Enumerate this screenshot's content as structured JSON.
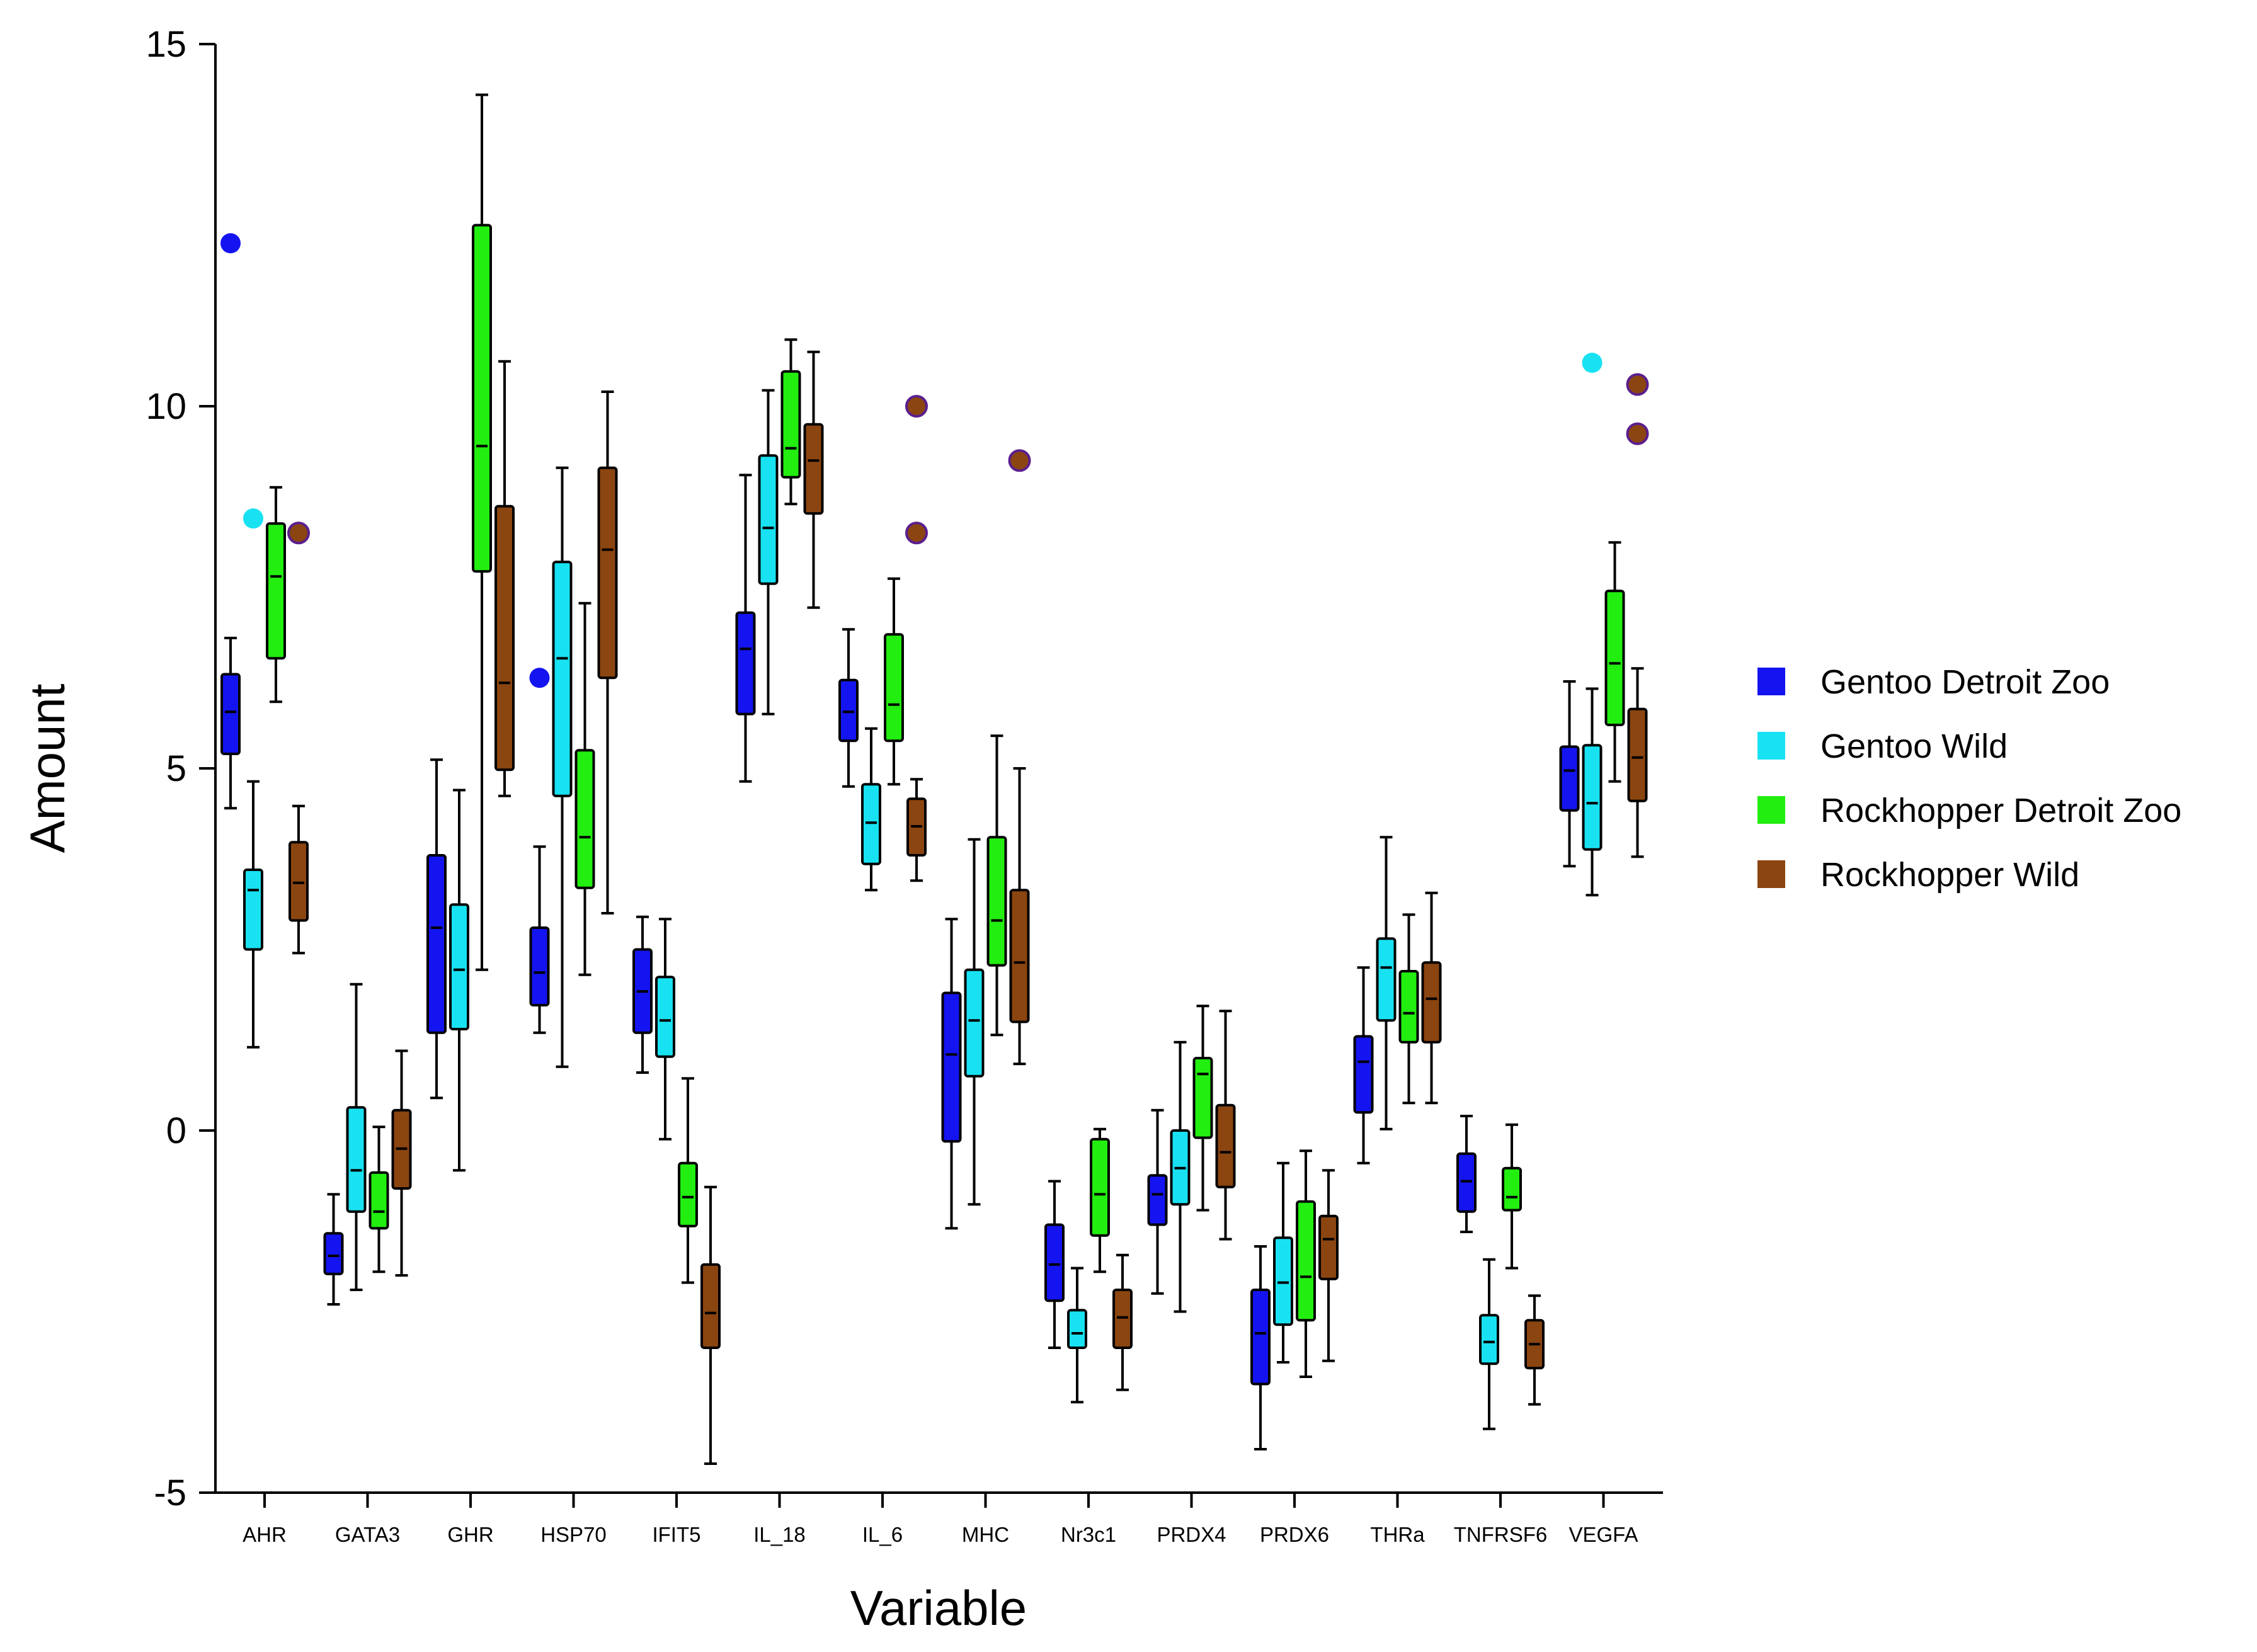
{
  "chart_data": {
    "type": "boxplot",
    "title": "",
    "xlabel": "Variable",
    "ylabel": "Amount",
    "ylim": [
      -5,
      15
    ],
    "yticks": [
      15,
      10,
      5,
      0,
      -5
    ],
    "ytick_labels": [
      "15",
      "10",
      "5",
      "0",
      "-5"
    ],
    "legend_position": "right",
    "categories": [
      "AHR",
      "GATA3",
      "GHR",
      "HSP70",
      "IFIT5",
      "IL_18",
      "IL_6",
      "MHC",
      "Nr3c1",
      "PRDX4",
      "PRDX6",
      "THRa",
      "TNFRSF6",
      "VEGFA"
    ],
    "series": [
      {
        "name": "Gentoo Detroit Zoo",
        "color": "#1414f0",
        "boxes": [
          {
            "min": 4.45,
            "q1": 5.2,
            "median": 5.78,
            "q3": 6.3,
            "max": 6.8,
            "outliers": [
              12.25
            ]
          },
          {
            "min": -2.4,
            "q1": -1.98,
            "median": -1.73,
            "q3": -1.42,
            "max": -0.88,
            "outliers": []
          },
          {
            "min": 0.45,
            "q1": 1.35,
            "median": 2.8,
            "q3": 3.8,
            "max": 5.12,
            "outliers": []
          },
          {
            "min": 1.35,
            "q1": 1.73,
            "median": 2.18,
            "q3": 2.8,
            "max": 3.92,
            "outliers": [
              6.25
            ]
          },
          {
            "min": 0.8,
            "q1": 1.35,
            "median": 1.92,
            "q3": 2.5,
            "max": 2.95,
            "outliers": []
          },
          {
            "min": 4.82,
            "q1": 5.75,
            "median": 6.65,
            "q3": 7.15,
            "max": 9.05,
            "outliers": []
          },
          {
            "min": 4.75,
            "q1": 5.38,
            "median": 5.78,
            "q3": 6.22,
            "max": 6.92,
            "outliers": []
          },
          {
            "min": -1.35,
            "q1": -0.15,
            "median": 1.05,
            "q3": 1.9,
            "max": 2.92,
            "outliers": []
          },
          {
            "min": -3.0,
            "q1": -2.35,
            "median": -1.85,
            "q3": -1.3,
            "max": -0.7,
            "outliers": []
          },
          {
            "min": -2.25,
            "q1": -1.3,
            "median": -0.88,
            "q3": -0.62,
            "max": 0.28,
            "outliers": []
          },
          {
            "min": -4.4,
            "q1": -3.5,
            "median": -2.8,
            "q3": -2.2,
            "max": -1.6,
            "outliers": []
          },
          {
            "min": -0.45,
            "q1": 0.25,
            "median": 0.95,
            "q3": 1.3,
            "max": 2.25,
            "outliers": []
          },
          {
            "min": -1.4,
            "q1": -1.12,
            "median": -0.7,
            "q3": -0.32,
            "max": 0.2,
            "outliers": []
          },
          {
            "min": 3.65,
            "q1": 4.42,
            "median": 4.97,
            "q3": 5.3,
            "max": 6.2,
            "outliers": []
          }
        ]
      },
      {
        "name": "Gentoo Wild",
        "color": "#18e2f2",
        "boxes": [
          {
            "min": 1.15,
            "q1": 2.5,
            "median": 3.32,
            "q3": 3.6,
            "max": 4.82,
            "outliers": [
              8.45
            ]
          },
          {
            "min": -2.2,
            "q1": -1.12,
            "median": -0.55,
            "q3": 0.32,
            "max": 2.02,
            "outliers": []
          },
          {
            "min": -0.55,
            "q1": 1.4,
            "median": 2.22,
            "q3": 3.12,
            "max": 4.7,
            "outliers": []
          },
          {
            "min": 0.88,
            "q1": 4.62,
            "median": 6.52,
            "q3": 7.85,
            "max": 9.15,
            "outliers": []
          },
          {
            "min": -0.12,
            "q1": 1.02,
            "median": 1.52,
            "q3": 2.12,
            "max": 2.92,
            "outliers": []
          },
          {
            "min": 5.75,
            "q1": 7.55,
            "median": 8.32,
            "q3": 9.32,
            "max": 10.22,
            "outliers": []
          },
          {
            "min": 3.32,
            "q1": 3.68,
            "median": 4.25,
            "q3": 4.78,
            "max": 5.55,
            "outliers": []
          },
          {
            "min": -1.02,
            "q1": 0.75,
            "median": 1.52,
            "q3": 2.22,
            "max": 4.02,
            "outliers": []
          },
          {
            "min": -3.75,
            "q1": -3.0,
            "median": -2.8,
            "q3": -2.48,
            "max": -1.9,
            "outliers": []
          },
          {
            "min": -2.5,
            "q1": -1.02,
            "median": -0.52,
            "q3": 0.0,
            "max": 1.22,
            "outliers": []
          },
          {
            "min": -3.2,
            "q1": -2.68,
            "median": -2.1,
            "q3": -1.48,
            "max": -0.45,
            "outliers": []
          },
          {
            "min": 0.02,
            "q1": 1.52,
            "median": 2.25,
            "q3": 2.65,
            "max": 4.05,
            "outliers": []
          },
          {
            "min": -4.12,
            "q1": -3.22,
            "median": -2.92,
            "q3": -2.55,
            "max": -1.78,
            "outliers": []
          },
          {
            "min": 3.25,
            "q1": 3.88,
            "median": 4.52,
            "q3": 5.32,
            "max": 6.1,
            "outliers": [
              10.6
            ]
          }
        ]
      },
      {
        "name": "Rockhopper Detroit Zoo",
        "color": "#22ee10",
        "boxes": [
          {
            "min": 5.92,
            "q1": 6.52,
            "median": 7.65,
            "q3": 8.38,
            "max": 8.88,
            "outliers": []
          },
          {
            "min": -1.95,
            "q1": -1.35,
            "median": -1.12,
            "q3": -0.58,
            "max": 0.05,
            "outliers": []
          },
          {
            "min": 2.22,
            "q1": 7.72,
            "median": 9.45,
            "q3": 12.5,
            "max": 14.3,
            "outliers": []
          },
          {
            "min": 2.15,
            "q1": 3.35,
            "median": 4.05,
            "q3": 5.25,
            "max": 7.28,
            "outliers": []
          },
          {
            "min": -2.1,
            "q1": -1.32,
            "median": -0.92,
            "q3": -0.45,
            "max": 0.72,
            "outliers": []
          },
          {
            "min": 8.65,
            "q1": 9.02,
            "median": 9.42,
            "q3": 10.48,
            "max": 10.92,
            "outliers": []
          },
          {
            "min": 4.78,
            "q1": 5.38,
            "median": 5.88,
            "q3": 6.85,
            "max": 7.62,
            "outliers": []
          },
          {
            "min": 1.32,
            "q1": 2.28,
            "median": 2.9,
            "q3": 4.05,
            "max": 5.45,
            "outliers": []
          },
          {
            "min": -1.95,
            "q1": -1.45,
            "median": -0.88,
            "q3": -0.12,
            "max": 0.02,
            "outliers": []
          },
          {
            "min": -1.1,
            "q1": -0.1,
            "median": 0.78,
            "q3": 1.0,
            "max": 1.72,
            "outliers": []
          },
          {
            "min": -3.4,
            "q1": -2.62,
            "median": -2.02,
            "q3": -0.98,
            "max": -0.28,
            "outliers": []
          },
          {
            "min": 0.38,
            "q1": 1.22,
            "median": 1.62,
            "q3": 2.2,
            "max": 2.98,
            "outliers": []
          },
          {
            "min": -1.9,
            "q1": -1.1,
            "median": -0.92,
            "q3": -0.52,
            "max": 0.08,
            "outliers": []
          },
          {
            "min": 4.82,
            "q1": 5.6,
            "median": 6.45,
            "q3": 7.45,
            "max": 8.12,
            "outliers": []
          }
        ]
      },
      {
        "name": "Rockhopper Wild",
        "color": "#8b4510",
        "boxes": [
          {
            "min": 2.45,
            "q1": 2.9,
            "median": 3.42,
            "q3": 3.98,
            "max": 4.48,
            "outliers": [
              8.25
            ]
          },
          {
            "min": -2.0,
            "q1": -0.8,
            "median": -0.25,
            "q3": 0.28,
            "max": 1.1,
            "outliers": []
          },
          {
            "min": 4.62,
            "q1": 4.98,
            "median": 6.18,
            "q3": 8.62,
            "max": 10.62,
            "outliers": []
          },
          {
            "min": 3.0,
            "q1": 6.25,
            "median": 8.02,
            "q3": 9.15,
            "max": 10.2,
            "outliers": []
          },
          {
            "min": -4.6,
            "q1": -3.0,
            "median": -2.52,
            "q3": -1.85,
            "max": -0.78,
            "outliers": []
          },
          {
            "min": 7.22,
            "q1": 8.52,
            "median": 9.25,
            "q3": 9.75,
            "max": 10.75,
            "outliers": []
          },
          {
            "min": 3.45,
            "q1": 3.8,
            "median": 4.2,
            "q3": 4.58,
            "max": 4.85,
            "outliers": [
              10.0,
              8.25
            ]
          },
          {
            "min": 0.92,
            "q1": 1.5,
            "median": 2.32,
            "q3": 3.32,
            "max": 5.0,
            "outliers": [
              9.25
            ]
          },
          {
            "min": -3.58,
            "q1": -3.0,
            "median": -2.58,
            "q3": -2.2,
            "max": -1.72,
            "outliers": []
          },
          {
            "min": -1.5,
            "q1": -0.78,
            "median": -0.3,
            "q3": 0.35,
            "max": 1.65,
            "outliers": []
          },
          {
            "min": -3.18,
            "q1": -2.05,
            "median": -1.5,
            "q3": -1.18,
            "max": -0.55,
            "outliers": []
          },
          {
            "min": 0.38,
            "q1": 1.22,
            "median": 1.82,
            "q3": 2.32,
            "max": 3.28,
            "outliers": []
          },
          {
            "min": -3.78,
            "q1": -3.28,
            "median": -2.95,
            "q3": -2.62,
            "max": -2.28,
            "outliers": []
          },
          {
            "min": 3.78,
            "q1": 4.55,
            "median": 5.15,
            "q3": 5.82,
            "max": 6.38,
            "outliers": [
              10.3,
              9.62
            ]
          }
        ]
      }
    ]
  }
}
